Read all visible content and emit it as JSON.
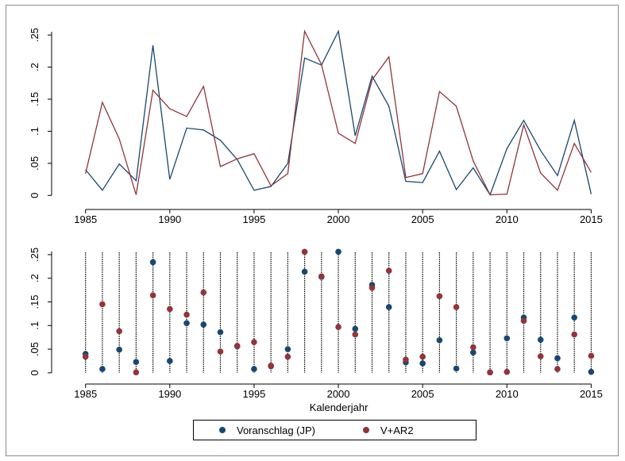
{
  "chart_data": [
    {
      "type": "line",
      "x": [
        1985,
        1986,
        1987,
        1988,
        1989,
        1990,
        1991,
        1992,
        1993,
        1994,
        1995,
        1996,
        1997,
        1998,
        1999,
        2000,
        2001,
        2002,
        2003,
        2004,
        2005,
        2006,
        2007,
        2008,
        2009,
        2010,
        2011,
        2012,
        2013,
        2014,
        2015
      ],
      "series": [
        {
          "name": "Voranschlag (JP)",
          "color": "#1a476f",
          "values": [
            0.04,
            0.008,
            0.049,
            0.023,
            0.234,
            0.025,
            0.105,
            0.102,
            0.086,
            0.056,
            0.008,
            0.014,
            0.05,
            0.214,
            0.203,
            0.256,
            0.093,
            0.186,
            0.139,
            0.022,
            0.02,
            0.069,
            0.009,
            0.043,
            0.001,
            0.073,
            0.117,
            0.07,
            0.031,
            0.117,
            0.002
          ]
        },
        {
          "name": "V+AR2",
          "color": "#90353b",
          "values": [
            0.034,
            0.145,
            0.088,
            0.001,
            0.164,
            0.135,
            0.123,
            0.17,
            0.045,
            0.057,
            0.065,
            0.015,
            0.034,
            0.256,
            0.204,
            0.097,
            0.081,
            0.18,
            0.216,
            0.028,
            0.034,
            0.162,
            0.139,
            0.054,
            0.001,
            0.002,
            0.11,
            0.035,
            0.008,
            0.081,
            0.036
          ]
        }
      ],
      "xlim": [
        1983.6,
        2016.3
      ],
      "ylim": [
        -0.012,
        0.265
      ],
      "xticks": [
        "1985",
        "1990",
        "1995",
        "2000",
        "2005",
        "2010",
        "2015"
      ],
      "yticks": [
        "0",
        ".05",
        ".1",
        ".15",
        ".2",
        ".25"
      ],
      "grid": false
    },
    {
      "type": "scatter",
      "x": [
        1985,
        1986,
        1987,
        1988,
        1989,
        1990,
        1991,
        1992,
        1993,
        1994,
        1995,
        1996,
        1997,
        1998,
        1999,
        2000,
        2001,
        2002,
        2003,
        2004,
        2005,
        2006,
        2007,
        2008,
        2009,
        2010,
        2011,
        2012,
        2013,
        2014,
        2015
      ],
      "series": [
        {
          "name": "Voranschlag (JP)",
          "color": "#1a476f",
          "values": [
            0.04,
            0.008,
            0.049,
            0.023,
            0.234,
            0.025,
            0.105,
            0.102,
            0.086,
            0.056,
            0.008,
            0.014,
            0.05,
            0.214,
            0.203,
            0.256,
            0.093,
            0.186,
            0.139,
            0.022,
            0.02,
            0.069,
            0.009,
            0.043,
            0.001,
            0.073,
            0.117,
            0.07,
            0.031,
            0.117,
            0.002
          ]
        },
        {
          "name": "V+AR2",
          "color": "#90353b",
          "values": [
            0.034,
            0.145,
            0.088,
            0.001,
            0.164,
            0.135,
            0.123,
            0.17,
            0.045,
            0.057,
            0.065,
            0.015,
            0.034,
            0.256,
            0.204,
            0.097,
            0.081,
            0.18,
            0.216,
            0.028,
            0.034,
            0.162,
            0.139,
            0.054,
            0.001,
            0.002,
            0.11,
            0.035,
            0.008,
            0.081,
            0.036
          ]
        }
      ],
      "dropline_top": 0.255,
      "xlim": [
        1983.6,
        2016.3
      ],
      "ylim": [
        -0.012,
        0.265
      ],
      "xticks": [
        "1985",
        "1990",
        "1995",
        "2000",
        "2005",
        "2010",
        "2015"
      ],
      "yticks": [
        "0",
        ".05",
        ".1",
        ".15",
        ".2",
        ".25"
      ],
      "xlabel": "Kalenderjahr",
      "grid": false
    }
  ],
  "legend": {
    "position": "bottom",
    "items": [
      {
        "label": "Voranschlag (JP)",
        "color": "#1a476f"
      },
      {
        "label": "V+AR2",
        "color": "#90353b"
      }
    ]
  }
}
